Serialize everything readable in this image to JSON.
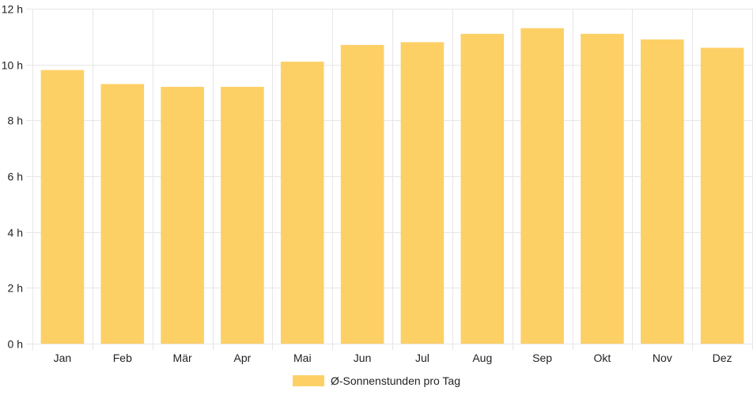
{
  "chart_data": {
    "type": "bar",
    "categories": [
      "Jan",
      "Feb",
      "Mär",
      "Apr",
      "Mai",
      "Jun",
      "Jul",
      "Aug",
      "Sep",
      "Okt",
      "Nov",
      "Dez"
    ],
    "series": [
      {
        "name": "Ø-Sonnenstunden pro Tag",
        "values": [
          9.8,
          9.3,
          9.2,
          9.2,
          10.1,
          10.7,
          10.8,
          11.1,
          11.3,
          11.1,
          10.9,
          10.6
        ]
      }
    ],
    "ylim": [
      0,
      12
    ],
    "yticks": [
      0,
      2,
      4,
      6,
      8,
      10,
      12
    ],
    "ytick_suffix": " h",
    "grid": true,
    "legend_position": "bottom",
    "bar_color": "#fdd066",
    "grid_color": "#e6e6e6"
  }
}
